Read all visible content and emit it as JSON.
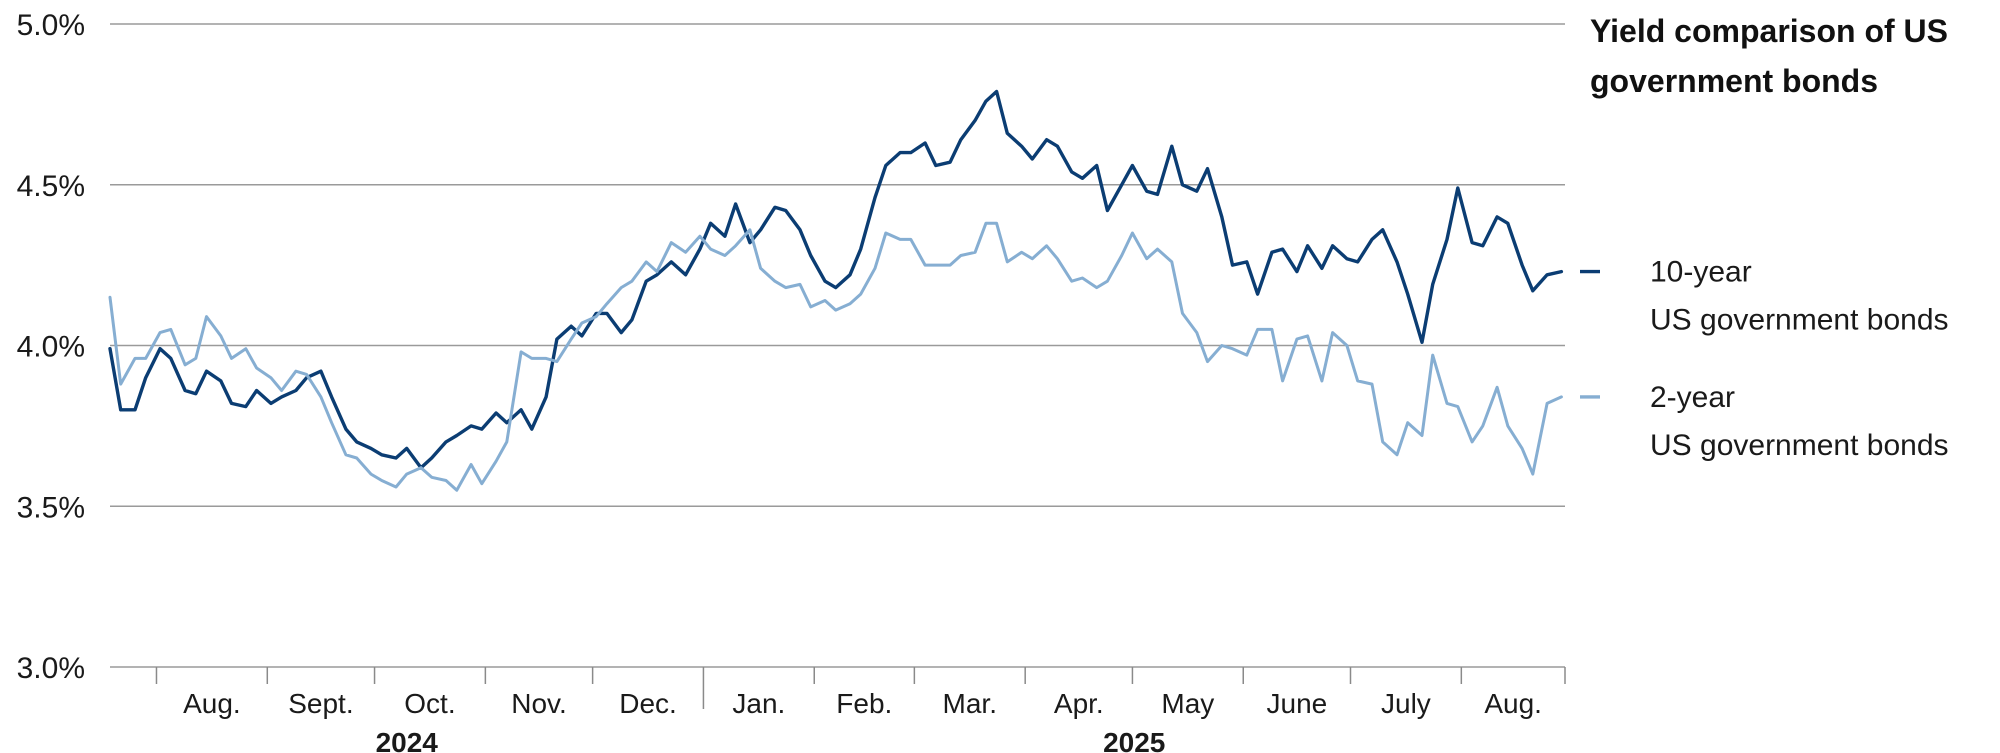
{
  "chart_data": {
    "type": "line",
    "title_lines": [
      "Yield comparison of US",
      "government bonds"
    ],
    "ylim": [
      3.0,
      5.0
    ],
    "yticks": [
      {
        "value": 3.0,
        "label": "3.0%"
      },
      {
        "value": 3.5,
        "label": "3.5%"
      },
      {
        "value": 4.0,
        "label": "4.0%"
      },
      {
        "value": 4.5,
        "label": "4.5%"
      },
      {
        "value": 5.0,
        "label": "5.0%"
      }
    ],
    "grid": true,
    "xlim": [
      "2024-07-19",
      "2025-08-29"
    ],
    "months": [
      {
        "label": "Aug.",
        "start": "2024-08-01",
        "end": "2024-08-31"
      },
      {
        "label": "Sept.",
        "start": "2024-09-01",
        "end": "2024-09-30"
      },
      {
        "label": "Oct.",
        "start": "2024-10-01",
        "end": "2024-10-31"
      },
      {
        "label": "Nov.",
        "start": "2024-11-01",
        "end": "2024-11-30"
      },
      {
        "label": "Dec.",
        "start": "2024-12-01",
        "end": "2024-12-31"
      },
      {
        "label": "Jan.",
        "start": "2025-01-01",
        "end": "2025-01-31"
      },
      {
        "label": "Feb.",
        "start": "2025-02-01",
        "end": "2025-02-28"
      },
      {
        "label": "Mar.",
        "start": "2025-03-01",
        "end": "2025-03-31"
      },
      {
        "label": "Apr.",
        "start": "2025-04-01",
        "end": "2025-04-30"
      },
      {
        "label": "May",
        "start": "2025-05-01",
        "end": "2025-05-31"
      },
      {
        "label": "June",
        "start": "2025-06-01",
        "end": "2025-06-30"
      },
      {
        "label": "July",
        "start": "2025-07-01",
        "end": "2025-07-31"
      },
      {
        "label": "Aug.",
        "start": "2025-08-01",
        "end": "2025-08-29"
      }
    ],
    "years": [
      {
        "label": "2024",
        "start": "2024-07-19",
        "end": "2024-12-31"
      },
      {
        "label": "2025",
        "start": "2025-01-01",
        "end": "2025-08-29"
      }
    ],
    "legend_placement": "right",
    "series": [
      {
        "name_lines": [
          "10-year",
          "US government bonds"
        ],
        "color": "#0b3d73",
        "points": [
          [
            "2024-07-19",
            3.99
          ],
          [
            "2024-07-22",
            3.8
          ],
          [
            "2024-07-26",
            3.8
          ],
          [
            "2024-07-29",
            3.9
          ],
          [
            "2024-08-02",
            3.99
          ],
          [
            "2024-08-05",
            3.96
          ],
          [
            "2024-08-09",
            3.86
          ],
          [
            "2024-08-12",
            3.85
          ],
          [
            "2024-08-15",
            3.92
          ],
          [
            "2024-08-19",
            3.89
          ],
          [
            "2024-08-22",
            3.82
          ],
          [
            "2024-08-26",
            3.81
          ],
          [
            "2024-08-29",
            3.86
          ],
          [
            "2024-09-02",
            3.82
          ],
          [
            "2024-09-05",
            3.84
          ],
          [
            "2024-09-09",
            3.86
          ],
          [
            "2024-09-12",
            3.9
          ],
          [
            "2024-09-16",
            3.92
          ],
          [
            "2024-09-19",
            3.84
          ],
          [
            "2024-09-23",
            3.74
          ],
          [
            "2024-09-26",
            3.7
          ],
          [
            "2024-09-30",
            3.68
          ],
          [
            "2024-10-03",
            3.66
          ],
          [
            "2024-10-07",
            3.65
          ],
          [
            "2024-10-10",
            3.68
          ],
          [
            "2024-10-14",
            3.62
          ],
          [
            "2024-10-17",
            3.65
          ],
          [
            "2024-10-21",
            3.7
          ],
          [
            "2024-10-24",
            3.72
          ],
          [
            "2024-10-28",
            3.75
          ],
          [
            "2024-10-31",
            3.74
          ],
          [
            "2024-11-04",
            3.79
          ],
          [
            "2024-11-07",
            3.76
          ],
          [
            "2024-11-11",
            3.8
          ],
          [
            "2024-11-14",
            3.74
          ],
          [
            "2024-11-18",
            3.84
          ],
          [
            "2024-11-21",
            4.02
          ],
          [
            "2024-11-25",
            4.06
          ],
          [
            "2024-11-28",
            4.03
          ],
          [
            "2024-12-02",
            4.1
          ],
          [
            "2024-12-05",
            4.1
          ],
          [
            "2024-12-09",
            4.04
          ],
          [
            "2024-12-12",
            4.08
          ],
          [
            "2024-12-16",
            4.2
          ],
          [
            "2024-12-19",
            4.22
          ],
          [
            "2024-12-23",
            4.26
          ],
          [
            "2024-12-27",
            4.22
          ],
          [
            "2024-12-31",
            4.3
          ],
          [
            "2025-01-03",
            4.38
          ],
          [
            "2025-01-07",
            4.34
          ],
          [
            "2025-01-10",
            4.44
          ],
          [
            "2025-01-14",
            4.32
          ],
          [
            "2025-01-17",
            4.36
          ],
          [
            "2025-01-21",
            4.43
          ],
          [
            "2025-01-24",
            4.42
          ],
          [
            "2025-01-28",
            4.36
          ],
          [
            "2025-01-31",
            4.28
          ],
          [
            "2025-02-04",
            4.2
          ],
          [
            "2025-02-07",
            4.18
          ],
          [
            "2025-02-11",
            4.22
          ],
          [
            "2025-02-14",
            4.3
          ],
          [
            "2025-02-18",
            4.46
          ],
          [
            "2025-02-21",
            4.56
          ],
          [
            "2025-02-25",
            4.6
          ],
          [
            "2025-02-28",
            4.6
          ],
          [
            "2025-03-04",
            4.63
          ],
          [
            "2025-03-07",
            4.56
          ],
          [
            "2025-03-11",
            4.57
          ],
          [
            "2025-03-14",
            4.64
          ],
          [
            "2025-03-18",
            4.7
          ],
          [
            "2025-03-21",
            4.76
          ],
          [
            "2025-03-24",
            4.79
          ],
          [
            "2025-03-27",
            4.66
          ],
          [
            "2025-03-31",
            4.62
          ],
          [
            "2025-04-03",
            4.58
          ],
          [
            "2025-04-07",
            4.64
          ],
          [
            "2025-04-10",
            4.62
          ],
          [
            "2025-04-14",
            4.54
          ],
          [
            "2025-04-17",
            4.52
          ],
          [
            "2025-04-21",
            4.56
          ],
          [
            "2025-04-24",
            4.42
          ],
          [
            "2025-04-28",
            4.5
          ],
          [
            "2025-05-01",
            4.56
          ],
          [
            "2025-05-05",
            4.48
          ],
          [
            "2025-05-08",
            4.47
          ],
          [
            "2025-05-12",
            4.62
          ],
          [
            "2025-05-15",
            4.5
          ],
          [
            "2025-05-19",
            4.48
          ],
          [
            "2025-05-22",
            4.55
          ],
          [
            "2025-05-26",
            4.4
          ],
          [
            "2025-05-29",
            4.25
          ],
          [
            "2025-06-02",
            4.26
          ],
          [
            "2025-06-05",
            4.16
          ],
          [
            "2025-06-09",
            4.29
          ],
          [
            "2025-06-12",
            4.3
          ],
          [
            "2025-06-16",
            4.23
          ],
          [
            "2025-06-19",
            4.31
          ],
          [
            "2025-06-23",
            4.24
          ],
          [
            "2025-06-26",
            4.31
          ],
          [
            "2025-06-30",
            4.27
          ],
          [
            "2025-07-03",
            4.26
          ],
          [
            "2025-07-07",
            4.33
          ],
          [
            "2025-07-10",
            4.36
          ],
          [
            "2025-07-14",
            4.26
          ],
          [
            "2025-07-17",
            4.16
          ],
          [
            "2025-07-21",
            4.01
          ],
          [
            "2025-07-24",
            4.19
          ],
          [
            "2025-07-28",
            4.33
          ],
          [
            "2025-07-31",
            4.49
          ],
          [
            "2025-08-04",
            4.32
          ],
          [
            "2025-08-07",
            4.31
          ],
          [
            "2025-08-11",
            4.4
          ],
          [
            "2025-08-14",
            4.38
          ],
          [
            "2025-08-18",
            4.25
          ],
          [
            "2025-08-21",
            4.17
          ],
          [
            "2025-08-25",
            4.22
          ],
          [
            "2025-08-29",
            4.23
          ]
        ]
      },
      {
        "name_lines": [
          "2-year",
          "US government bonds"
        ],
        "color": "#86aed2",
        "points": [
          [
            "2024-07-19",
            4.15
          ],
          [
            "2024-07-22",
            3.88
          ],
          [
            "2024-07-26",
            3.96
          ],
          [
            "2024-07-29",
            3.96
          ],
          [
            "2024-08-02",
            4.04
          ],
          [
            "2024-08-05",
            4.05
          ],
          [
            "2024-08-09",
            3.94
          ],
          [
            "2024-08-12",
            3.96
          ],
          [
            "2024-08-15",
            4.09
          ],
          [
            "2024-08-19",
            4.03
          ],
          [
            "2024-08-22",
            3.96
          ],
          [
            "2024-08-26",
            3.99
          ],
          [
            "2024-08-29",
            3.93
          ],
          [
            "2024-09-02",
            3.9
          ],
          [
            "2024-09-05",
            3.86
          ],
          [
            "2024-09-09",
            3.92
          ],
          [
            "2024-09-12",
            3.91
          ],
          [
            "2024-09-16",
            3.84
          ],
          [
            "2024-09-19",
            3.76
          ],
          [
            "2024-09-23",
            3.66
          ],
          [
            "2024-09-26",
            3.65
          ],
          [
            "2024-09-30",
            3.6
          ],
          [
            "2024-10-03",
            3.58
          ],
          [
            "2024-10-07",
            3.56
          ],
          [
            "2024-10-10",
            3.6
          ],
          [
            "2024-10-14",
            3.62
          ],
          [
            "2024-10-17",
            3.59
          ],
          [
            "2024-10-21",
            3.58
          ],
          [
            "2024-10-24",
            3.55
          ],
          [
            "2024-10-28",
            3.63
          ],
          [
            "2024-10-31",
            3.57
          ],
          [
            "2024-11-04",
            3.64
          ],
          [
            "2024-11-07",
            3.7
          ],
          [
            "2024-11-11",
            3.98
          ],
          [
            "2024-11-14",
            3.96
          ],
          [
            "2024-11-18",
            3.96
          ],
          [
            "2024-11-21",
            3.95
          ],
          [
            "2024-11-25",
            4.02
          ],
          [
            "2024-11-28",
            4.07
          ],
          [
            "2024-12-02",
            4.09
          ],
          [
            "2024-12-05",
            4.13
          ],
          [
            "2024-12-09",
            4.18
          ],
          [
            "2024-12-12",
            4.2
          ],
          [
            "2024-12-16",
            4.26
          ],
          [
            "2024-12-19",
            4.23
          ],
          [
            "2024-12-23",
            4.32
          ],
          [
            "2024-12-27",
            4.29
          ],
          [
            "2024-12-31",
            4.34
          ],
          [
            "2025-01-03",
            4.3
          ],
          [
            "2025-01-07",
            4.28
          ],
          [
            "2025-01-10",
            4.31
          ],
          [
            "2025-01-14",
            4.36
          ],
          [
            "2025-01-17",
            4.24
          ],
          [
            "2025-01-21",
            4.2
          ],
          [
            "2025-01-24",
            4.18
          ],
          [
            "2025-01-28",
            4.19
          ],
          [
            "2025-01-31",
            4.12
          ],
          [
            "2025-02-04",
            4.14
          ],
          [
            "2025-02-07",
            4.11
          ],
          [
            "2025-02-11",
            4.13
          ],
          [
            "2025-02-14",
            4.16
          ],
          [
            "2025-02-18",
            4.24
          ],
          [
            "2025-02-21",
            4.35
          ],
          [
            "2025-02-25",
            4.33
          ],
          [
            "2025-02-28",
            4.33
          ],
          [
            "2025-03-04",
            4.25
          ],
          [
            "2025-03-07",
            4.25
          ],
          [
            "2025-03-11",
            4.25
          ],
          [
            "2025-03-14",
            4.28
          ],
          [
            "2025-03-18",
            4.29
          ],
          [
            "2025-03-21",
            4.38
          ],
          [
            "2025-03-24",
            4.38
          ],
          [
            "2025-03-27",
            4.26
          ],
          [
            "2025-03-31",
            4.29
          ],
          [
            "2025-04-03",
            4.27
          ],
          [
            "2025-04-07",
            4.31
          ],
          [
            "2025-04-10",
            4.27
          ],
          [
            "2025-04-14",
            4.2
          ],
          [
            "2025-04-17",
            4.21
          ],
          [
            "2025-04-21",
            4.18
          ],
          [
            "2025-04-24",
            4.2
          ],
          [
            "2025-04-28",
            4.28
          ],
          [
            "2025-05-01",
            4.35
          ],
          [
            "2025-05-05",
            4.27
          ],
          [
            "2025-05-08",
            4.3
          ],
          [
            "2025-05-12",
            4.26
          ],
          [
            "2025-05-15",
            4.1
          ],
          [
            "2025-05-19",
            4.04
          ],
          [
            "2025-05-22",
            3.95
          ],
          [
            "2025-05-26",
            4.0
          ],
          [
            "2025-05-29",
            3.99
          ],
          [
            "2025-06-02",
            3.97
          ],
          [
            "2025-06-05",
            4.05
          ],
          [
            "2025-06-09",
            4.05
          ],
          [
            "2025-06-12",
            3.89
          ],
          [
            "2025-06-16",
            4.02
          ],
          [
            "2025-06-19",
            4.03
          ],
          [
            "2025-06-23",
            3.89
          ],
          [
            "2025-06-26",
            4.04
          ],
          [
            "2025-06-30",
            4.0
          ],
          [
            "2025-07-03",
            3.89
          ],
          [
            "2025-07-07",
            3.88
          ],
          [
            "2025-07-10",
            3.7
          ],
          [
            "2025-07-14",
            3.66
          ],
          [
            "2025-07-17",
            3.76
          ],
          [
            "2025-07-21",
            3.72
          ],
          [
            "2025-07-24",
            3.97
          ],
          [
            "2025-07-28",
            3.82
          ],
          [
            "2025-07-31",
            3.81
          ],
          [
            "2025-08-04",
            3.7
          ],
          [
            "2025-08-07",
            3.75
          ],
          [
            "2025-08-11",
            3.87
          ],
          [
            "2025-08-14",
            3.75
          ],
          [
            "2025-08-18",
            3.68
          ],
          [
            "2025-08-21",
            3.6
          ],
          [
            "2025-08-25",
            3.82
          ],
          [
            "2025-08-29",
            3.84
          ]
        ]
      }
    ]
  }
}
